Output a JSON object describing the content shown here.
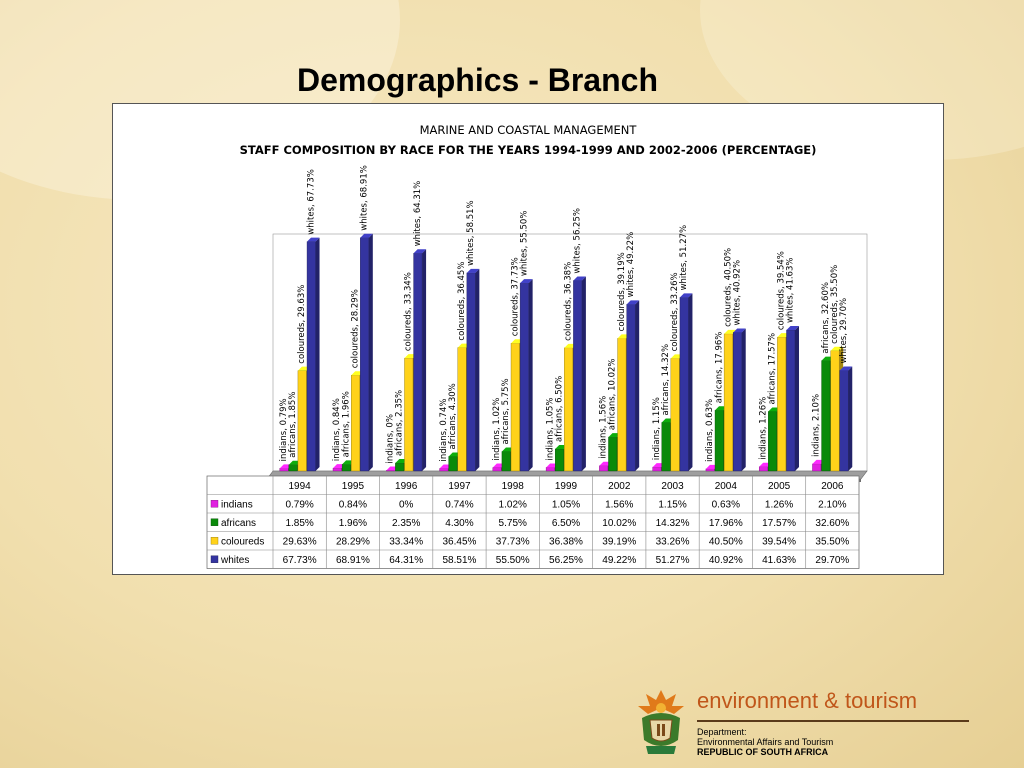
{
  "slide": {
    "title": "Demographics - Branch"
  },
  "chart_data": {
    "type": "bar",
    "title": "MARINE AND COASTAL MANAGEMENT",
    "subtitle": "STAFF COMPOSITION BY RACE FOR THE YEARS 1994-1999 AND 2002-2006 (PERCENTAGE)",
    "categories": [
      "1994",
      "1995",
      "1996",
      "1997",
      "1998",
      "1999",
      "2002",
      "2003",
      "2004",
      "2005",
      "2006"
    ],
    "ylim": [
      0,
      70
    ],
    "grid": false,
    "legend": "left of data table",
    "series": [
      {
        "name": "indians",
        "color": "#e020e0",
        "values": [
          0.79,
          0.84,
          0,
          0.74,
          1.02,
          1.05,
          1.56,
          1.15,
          0.63,
          1.26,
          2.1
        ],
        "labels": [
          "0.79%",
          "0.84%",
          "0%",
          "0.74%",
          "1.02%",
          "1.05%",
          "1.56%",
          "1.15%",
          "0.63%",
          "1.26%",
          "2.10%"
        ]
      },
      {
        "name": "africans",
        "color": "#0a8a0a",
        "values": [
          1.85,
          1.96,
          2.35,
          4.3,
          5.75,
          6.5,
          10.02,
          14.32,
          17.96,
          17.57,
          32.6
        ],
        "labels": [
          "1.85%",
          "1.96%",
          "2.35%",
          "4.30%",
          "5.75%",
          "6.50%",
          "10.02%",
          "14.32%",
          "17.96%",
          "17.57%",
          "32.60%"
        ]
      },
      {
        "name": "coloureds",
        "color": "#ffd21a",
        "values": [
          29.63,
          28.29,
          33.34,
          36.45,
          37.73,
          36.38,
          39.19,
          33.26,
          40.5,
          39.54,
          35.5
        ],
        "labels": [
          "29.63%",
          "28.29%",
          "33.34%",
          "36.45%",
          "37.73%",
          "36.38%",
          "39.19%",
          "33.26%",
          "40.50%",
          "39.54%",
          "35.50%"
        ]
      },
      {
        "name": "whites",
        "color": "#3434a0",
        "values": [
          67.73,
          68.91,
          64.31,
          58.51,
          55.5,
          56.25,
          49.22,
          51.27,
          40.92,
          41.63,
          29.7
        ],
        "labels": [
          "67.73%",
          "68.91%",
          "64.31%",
          "58.51%",
          "55.50%",
          "56.25%",
          "49.22%",
          "51.27%",
          "40.92%",
          "41.63%",
          "29.70%"
        ]
      }
    ]
  },
  "footer": {
    "brand": "environment & tourism",
    "department_label": "Department:",
    "department_name": "Environmental Affairs and Tourism",
    "country": "REPUBLIC OF SOUTH AFRICA"
  },
  "colors": {
    "panel_border": "#555555",
    "brand_orange": "#c0561a"
  }
}
